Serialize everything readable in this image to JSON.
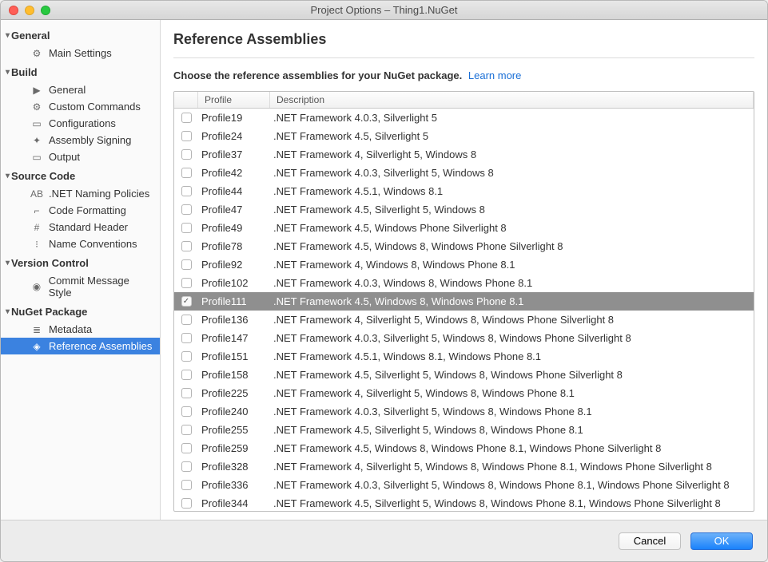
{
  "window": {
    "title": "Project Options – Thing1.NuGet"
  },
  "sidebar": {
    "sections": [
      {
        "label": "General",
        "items": [
          {
            "icon": "⚙",
            "label": "Main Settings"
          }
        ]
      },
      {
        "label": "Build",
        "items": [
          {
            "icon": "▶",
            "label": "General"
          },
          {
            "icon": "⚙",
            "label": "Custom Commands"
          },
          {
            "icon": "▭",
            "label": "Configurations"
          },
          {
            "icon": "✦",
            "label": "Assembly Signing"
          },
          {
            "icon": "▭",
            "label": "Output"
          }
        ]
      },
      {
        "label": "Source Code",
        "items": [
          {
            "icon": "AB",
            "label": ".NET Naming Policies"
          },
          {
            "icon": "⌐",
            "label": "Code Formatting"
          },
          {
            "icon": "#",
            "label": "Standard Header"
          },
          {
            "icon": "⁝",
            "label": "Name Conventions"
          }
        ]
      },
      {
        "label": "Version Control",
        "items": [
          {
            "icon": "◉",
            "label": "Commit Message Style"
          }
        ]
      },
      {
        "label": "NuGet Package",
        "items": [
          {
            "icon": "≣",
            "label": "Metadata"
          },
          {
            "icon": "◈",
            "label": "Reference Assemblies",
            "selected": true
          }
        ]
      }
    ]
  },
  "main": {
    "heading": "Reference Assemblies",
    "subhead_bold": "Choose the reference assemblies for your NuGet package.",
    "learn_more": "Learn more",
    "columns": {
      "profile": "Profile",
      "description": "Description"
    },
    "rows": [
      {
        "profile": "Profile19",
        "desc": ".NET Framework 4.0.3, Silverlight 5"
      },
      {
        "profile": "Profile24",
        "desc": ".NET Framework 4.5, Silverlight 5"
      },
      {
        "profile": "Profile37",
        "desc": ".NET Framework 4, Silverlight 5, Windows 8"
      },
      {
        "profile": "Profile42",
        "desc": ".NET Framework 4.0.3, Silverlight 5, Windows 8"
      },
      {
        "profile": "Profile44",
        "desc": ".NET Framework 4.5.1, Windows 8.1"
      },
      {
        "profile": "Profile47",
        "desc": ".NET Framework 4.5, Silverlight 5, Windows 8"
      },
      {
        "profile": "Profile49",
        "desc": ".NET Framework 4.5, Windows Phone Silverlight 8"
      },
      {
        "profile": "Profile78",
        "desc": ".NET Framework 4.5, Windows 8, Windows Phone Silverlight 8"
      },
      {
        "profile": "Profile92",
        "desc": ".NET Framework 4, Windows 8, Windows Phone 8.1"
      },
      {
        "profile": "Profile102",
        "desc": ".NET Framework 4.0.3, Windows 8, Windows Phone 8.1"
      },
      {
        "profile": "Profile111",
        "desc": ".NET Framework 4.5, Windows 8, Windows Phone 8.1",
        "checked": true,
        "selected": true
      },
      {
        "profile": "Profile136",
        "desc": ".NET Framework 4, Silverlight 5, Windows 8, Windows Phone Silverlight 8"
      },
      {
        "profile": "Profile147",
        "desc": ".NET Framework 4.0.3, Silverlight 5, Windows 8, Windows Phone Silverlight 8"
      },
      {
        "profile": "Profile151",
        "desc": ".NET Framework 4.5.1, Windows 8.1, Windows Phone 8.1"
      },
      {
        "profile": "Profile158",
        "desc": ".NET Framework 4.5, Silverlight 5, Windows 8, Windows Phone Silverlight 8"
      },
      {
        "profile": "Profile225",
        "desc": ".NET Framework 4, Silverlight 5, Windows 8, Windows Phone 8.1"
      },
      {
        "profile": "Profile240",
        "desc": ".NET Framework 4.0.3, Silverlight 5, Windows 8, Windows Phone 8.1"
      },
      {
        "profile": "Profile255",
        "desc": ".NET Framework 4.5, Silverlight 5, Windows 8, Windows Phone 8.1"
      },
      {
        "profile": "Profile259",
        "desc": ".NET Framework 4.5, Windows 8, Windows Phone 8.1, Windows Phone Silverlight 8"
      },
      {
        "profile": "Profile328",
        "desc": ".NET Framework 4, Silverlight 5, Windows 8, Windows Phone 8.1, Windows Phone Silverlight 8"
      },
      {
        "profile": "Profile336",
        "desc": ".NET Framework 4.0.3, Silverlight 5, Windows 8, Windows Phone 8.1, Windows Phone Silverlight 8"
      },
      {
        "profile": "Profile344",
        "desc": ".NET Framework 4.5, Silverlight 5, Windows 8, Windows Phone 8.1, Windows Phone Silverlight 8"
      }
    ]
  },
  "footer": {
    "cancel": "Cancel",
    "ok": "OK"
  },
  "colors": {
    "selection_sidebar": "#3b82e0",
    "selection_row": "#8f8f8f",
    "primary_button": "#1a82fb",
    "link": "#1a6fd6"
  }
}
